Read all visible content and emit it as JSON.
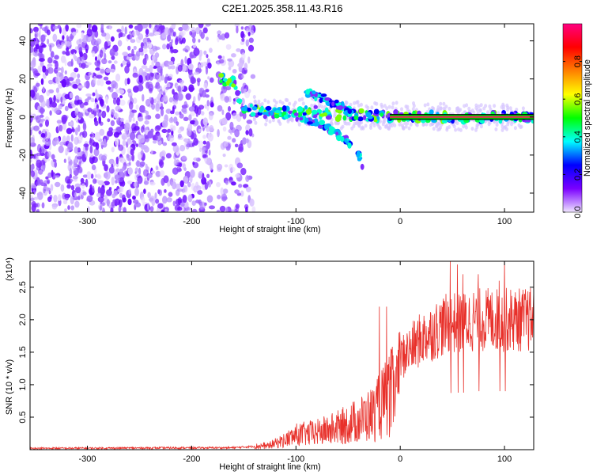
{
  "figure_title": "C2E1.2025.358.11.43.R16",
  "chart_data": [
    {
      "type": "heatmap",
      "title": "C2E1.2025.358.11.43.R16",
      "xlabel": "Height of straight line (km)",
      "ylabel": "Frequency (Hz)",
      "xlim": [
        -355,
        128
      ],
      "ylim": [
        -50,
        49
      ],
      "xticks": [
        -300,
        -200,
        -100,
        0,
        100
      ],
      "yticks": [
        -40,
        -20,
        0,
        20,
        40
      ],
      "colorbar": {
        "label": "Normalized spectral amplitude",
        "range": [
          0,
          1
        ],
        "ticks": [
          0.0,
          0.2,
          0.4,
          0.6,
          0.8
        ],
        "colors": [
          "#f0e6ff",
          "#7a00ff",
          "#0000ff",
          "#00ffff",
          "#00ff00",
          "#ffff00",
          "#ff8000",
          "#ff0000",
          "#ff0080"
        ]
      },
      "features": {
        "broadband_noise_x_range": [
          -355,
          -140
        ],
        "noise_gap_x_range": [
          -180,
          -175
        ],
        "signal_track": {
          "x": [
            -175,
            -160,
            -150,
            -135,
            -125,
            -100,
            -85,
            -70,
            -55,
            -40,
            -20,
            0,
            40,
            80,
            128
          ],
          "y": [
            20,
            19,
            5,
            3,
            2,
            2,
            3,
            2,
            1,
            1,
            0.5,
            0.5,
            0,
            0,
            0
          ]
        },
        "branch_track": {
          "x": [
            -100,
            -80,
            -65,
            -50,
            -40,
            -35
          ],
          "y": [
            0,
            -3,
            -7,
            -13,
            -20,
            -27
          ]
        },
        "upper_branch_track": {
          "x": [
            -90,
            -75,
            -60,
            -45
          ],
          "y": [
            12,
            10,
            6,
            2
          ]
        },
        "solid_line_x_range": [
          -10,
          128
        ]
      }
    },
    {
      "type": "line",
      "xlabel": "Height of straight line (km)",
      "ylabel": "SNR (10 * v/v)",
      "y_multiplier": "(x10⁴)",
      "xlim": [
        -355,
        128
      ],
      "ylim": [
        0,
        2.9
      ],
      "xticks": [
        -300,
        -200,
        -100,
        0,
        100
      ],
      "yticks": [
        0.5,
        1.0,
        1.5,
        2.0,
        2.5
      ],
      "series": [
        {
          "name": "SNR",
          "color": "#e8302a",
          "envelope_x": [
            -355,
            -160,
            -130,
            -110,
            -100,
            -80,
            -60,
            -40,
            -25,
            -15,
            -5,
            0,
            10,
            20,
            30,
            40,
            50,
            60,
            70,
            80,
            90,
            100,
            110,
            120,
            128
          ],
          "envelope_y": [
            0.02,
            0.03,
            0.06,
            0.2,
            0.3,
            0.35,
            0.45,
            0.6,
            0.75,
            1.0,
            1.25,
            1.4,
            1.55,
            1.7,
            1.8,
            1.9,
            1.95,
            1.95,
            2.0,
            2.0,
            2.0,
            2.0,
            2.0,
            2.0,
            2.0
          ],
          "peaks_x": [
            -20,
            -13,
            48,
            55,
            60,
            75,
            95,
            100
          ],
          "peaks_y": [
            2.2,
            2.2,
            2.9,
            2.85,
            2.7,
            2.7,
            2.6,
            2.9
          ]
        }
      ]
    }
  ]
}
